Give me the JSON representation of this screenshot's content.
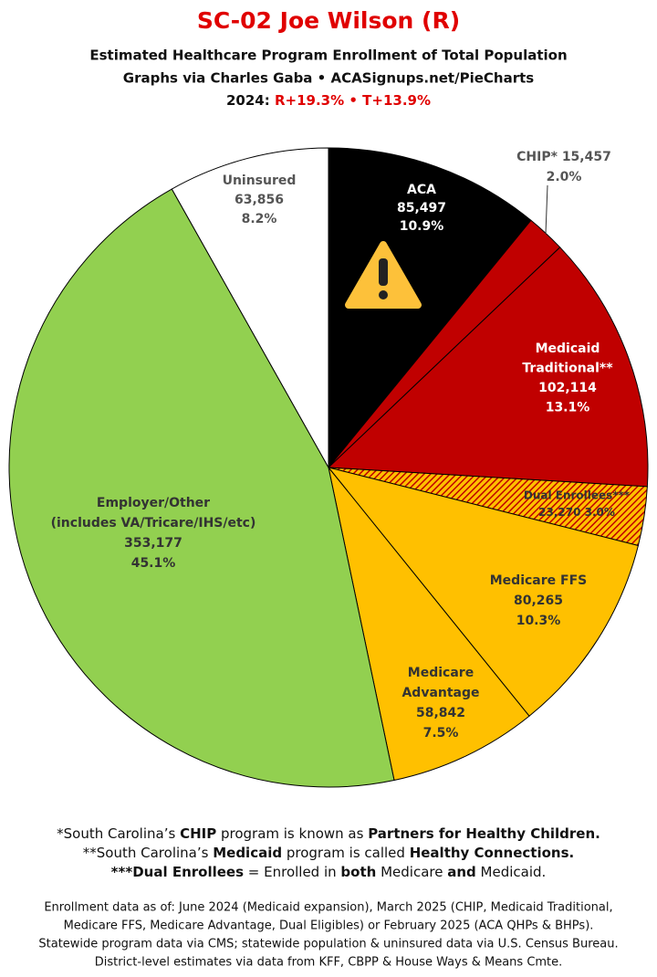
{
  "chart_data": {
    "type": "pie",
    "title": "SC-02 Joe Wilson (R)",
    "subtitle_lines": [
      "Estimated Healthcare Program Enrollment of Total Population",
      "Graphs via Charles Gaba  •  ACASignups.net/PieCharts"
    ],
    "year_label": "2024:",
    "margin_label": "R+19.3% • T+13.9%",
    "label_lines": [
      [
        "ACA"
      ],
      [
        "CHIP*"
      ],
      [
        "Medicaid",
        "Traditional**"
      ],
      [
        "Dual Enrollees***"
      ],
      [
        "Medicare FFS"
      ],
      [
        "Medicare",
        "Advantage"
      ],
      [
        "Employer/Other",
        "(includes VA/Tricare/IHS/etc)"
      ],
      [
        "Uninsured"
      ]
    ],
    "values": [
      85497,
      15457,
      102114,
      23270,
      80265,
      58842,
      353177,
      63856
    ],
    "value_labels": [
      "85,497",
      "15,457",
      "102,114",
      "23,270",
      "80,265",
      "58,842",
      "353,177",
      "63,856"
    ],
    "percent_labels": [
      "10.9%",
      "2.0%",
      "13.1%",
      "3.0%",
      "10.3%",
      "7.5%",
      "45.1%",
      "8.2%"
    ],
    "colors": [
      "#000000",
      "#c00000",
      "#c00000",
      "#ffc000",
      "#ffc000",
      "#ffc000",
      "#92d050",
      "#ffffff"
    ],
    "hatch_colors": [
      null,
      null,
      null,
      "#c00000",
      null,
      null,
      null,
      null
    ],
    "footnotes": [
      [
        {
          "text": "*South Carolina’s ",
          "bold": false
        },
        {
          "text": "CHIP",
          "bold": true
        },
        {
          "text": " program is known as ",
          "bold": false
        },
        {
          "text": "Partners for Healthy Children.",
          "bold": true
        }
      ],
      [
        {
          "text": "**South Carolina’s ",
          "bold": false
        },
        {
          "text": "Medicaid",
          "bold": true
        },
        {
          "text": " program is called ",
          "bold": false
        },
        {
          "text": "Healthy Connections.",
          "bold": true
        }
      ],
      [
        {
          "text": "***Dual Enrollees",
          "bold": true
        },
        {
          "text": " = Enrolled in ",
          "bold": false
        },
        {
          "text": "both",
          "bold": true
        },
        {
          "text": " Medicare ",
          "bold": false
        },
        {
          "text": "and",
          "bold": true
        },
        {
          "text": " Medicaid.",
          "bold": false
        }
      ]
    ],
    "source_lines": [
      "Enrollment data as of: June 2024 (Medicaid expansion), March 2025 (CHIP, Medicaid Traditional,",
      "Medicare FFS, Medicare Advantage, Dual Eligibles) or February 2025 (ACA QHPs & BHPs).",
      "Statewide program data via CMS; statewide population & uninsured data via U.S. Census Bureau.",
      "District-level estimates via data from KFF, CBPP & House Ways & Means Cmte."
    ]
  }
}
